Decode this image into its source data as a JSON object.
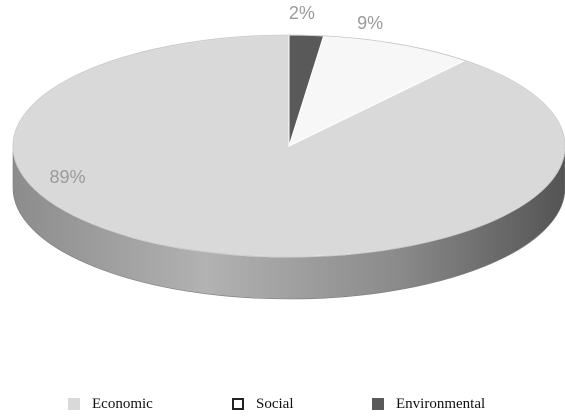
{
  "chart_data": {
    "type": "pie",
    "style": "3d",
    "slices": [
      {
        "name": "Economic",
        "value": 89,
        "label": "89%",
        "color": "#d9d9d9"
      },
      {
        "name": "Social",
        "value": 9,
        "label": "9%",
        "color": "#f7f7f7"
      },
      {
        "name": "Environmental",
        "value": 2,
        "label": "2%",
        "color": "#595959"
      }
    ],
    "legend_position": "bottom"
  }
}
